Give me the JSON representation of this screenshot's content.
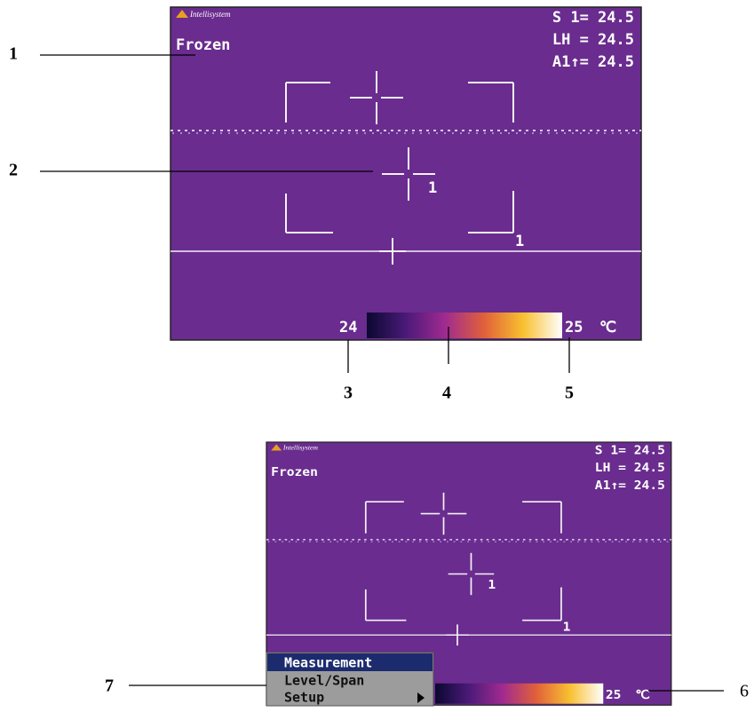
{
  "screens": [
    {
      "brand": "Intellisystem",
      "status": "Frozen",
      "readings": [
        "S 1= 24.5",
        "LH = 24.5",
        "A1↑= 24.5"
      ],
      "point_labels": [
        "1",
        "1"
      ],
      "scale_min": "24",
      "scale_max": "25",
      "unit": "℃"
    },
    {
      "brand": "Intellisystem",
      "status": "Frozen",
      "readings": [
        "S 1= 24.5",
        "LH = 24.5",
        "A1↑= 24.5"
      ],
      "point_labels": [
        "1",
        "1"
      ],
      "scale_max": "25",
      "unit": "℃",
      "menu": [
        "Measurement",
        "Level/Span",
        "Setup"
      ]
    }
  ],
  "callouts": [
    "1",
    "2",
    "3",
    "4",
    "5",
    "6",
    "7"
  ]
}
